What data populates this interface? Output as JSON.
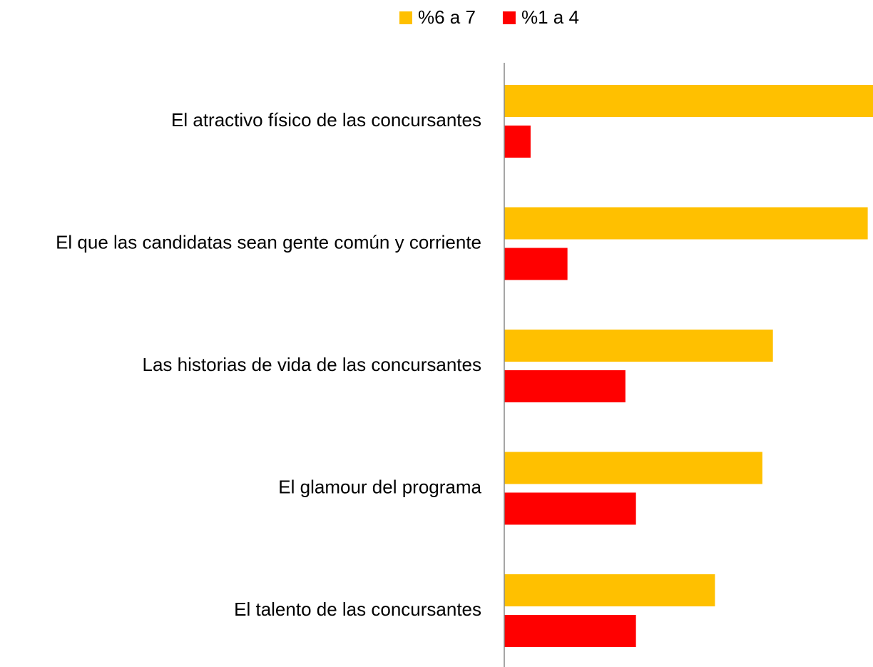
{
  "chart_data": {
    "type": "barh",
    "categories": [
      "El atractivo físico de las concursantes",
      "El que las candidatas sean gente común y corriente",
      "Las historias de vida de las concursantes",
      "El glamour del programa",
      "El talento de las concursantes"
    ],
    "series": [
      {
        "name": "%6 a 7",
        "color": "#ffc000",
        "values": [
          70,
          69,
          51,
          49,
          40
        ]
      },
      {
        "name": "%1 a 4",
        "color": "#ff0000",
        "values": [
          5,
          12,
          23,
          25,
          25
        ]
      }
    ],
    "xlim": [
      0,
      70
    ],
    "legend": "top"
  }
}
